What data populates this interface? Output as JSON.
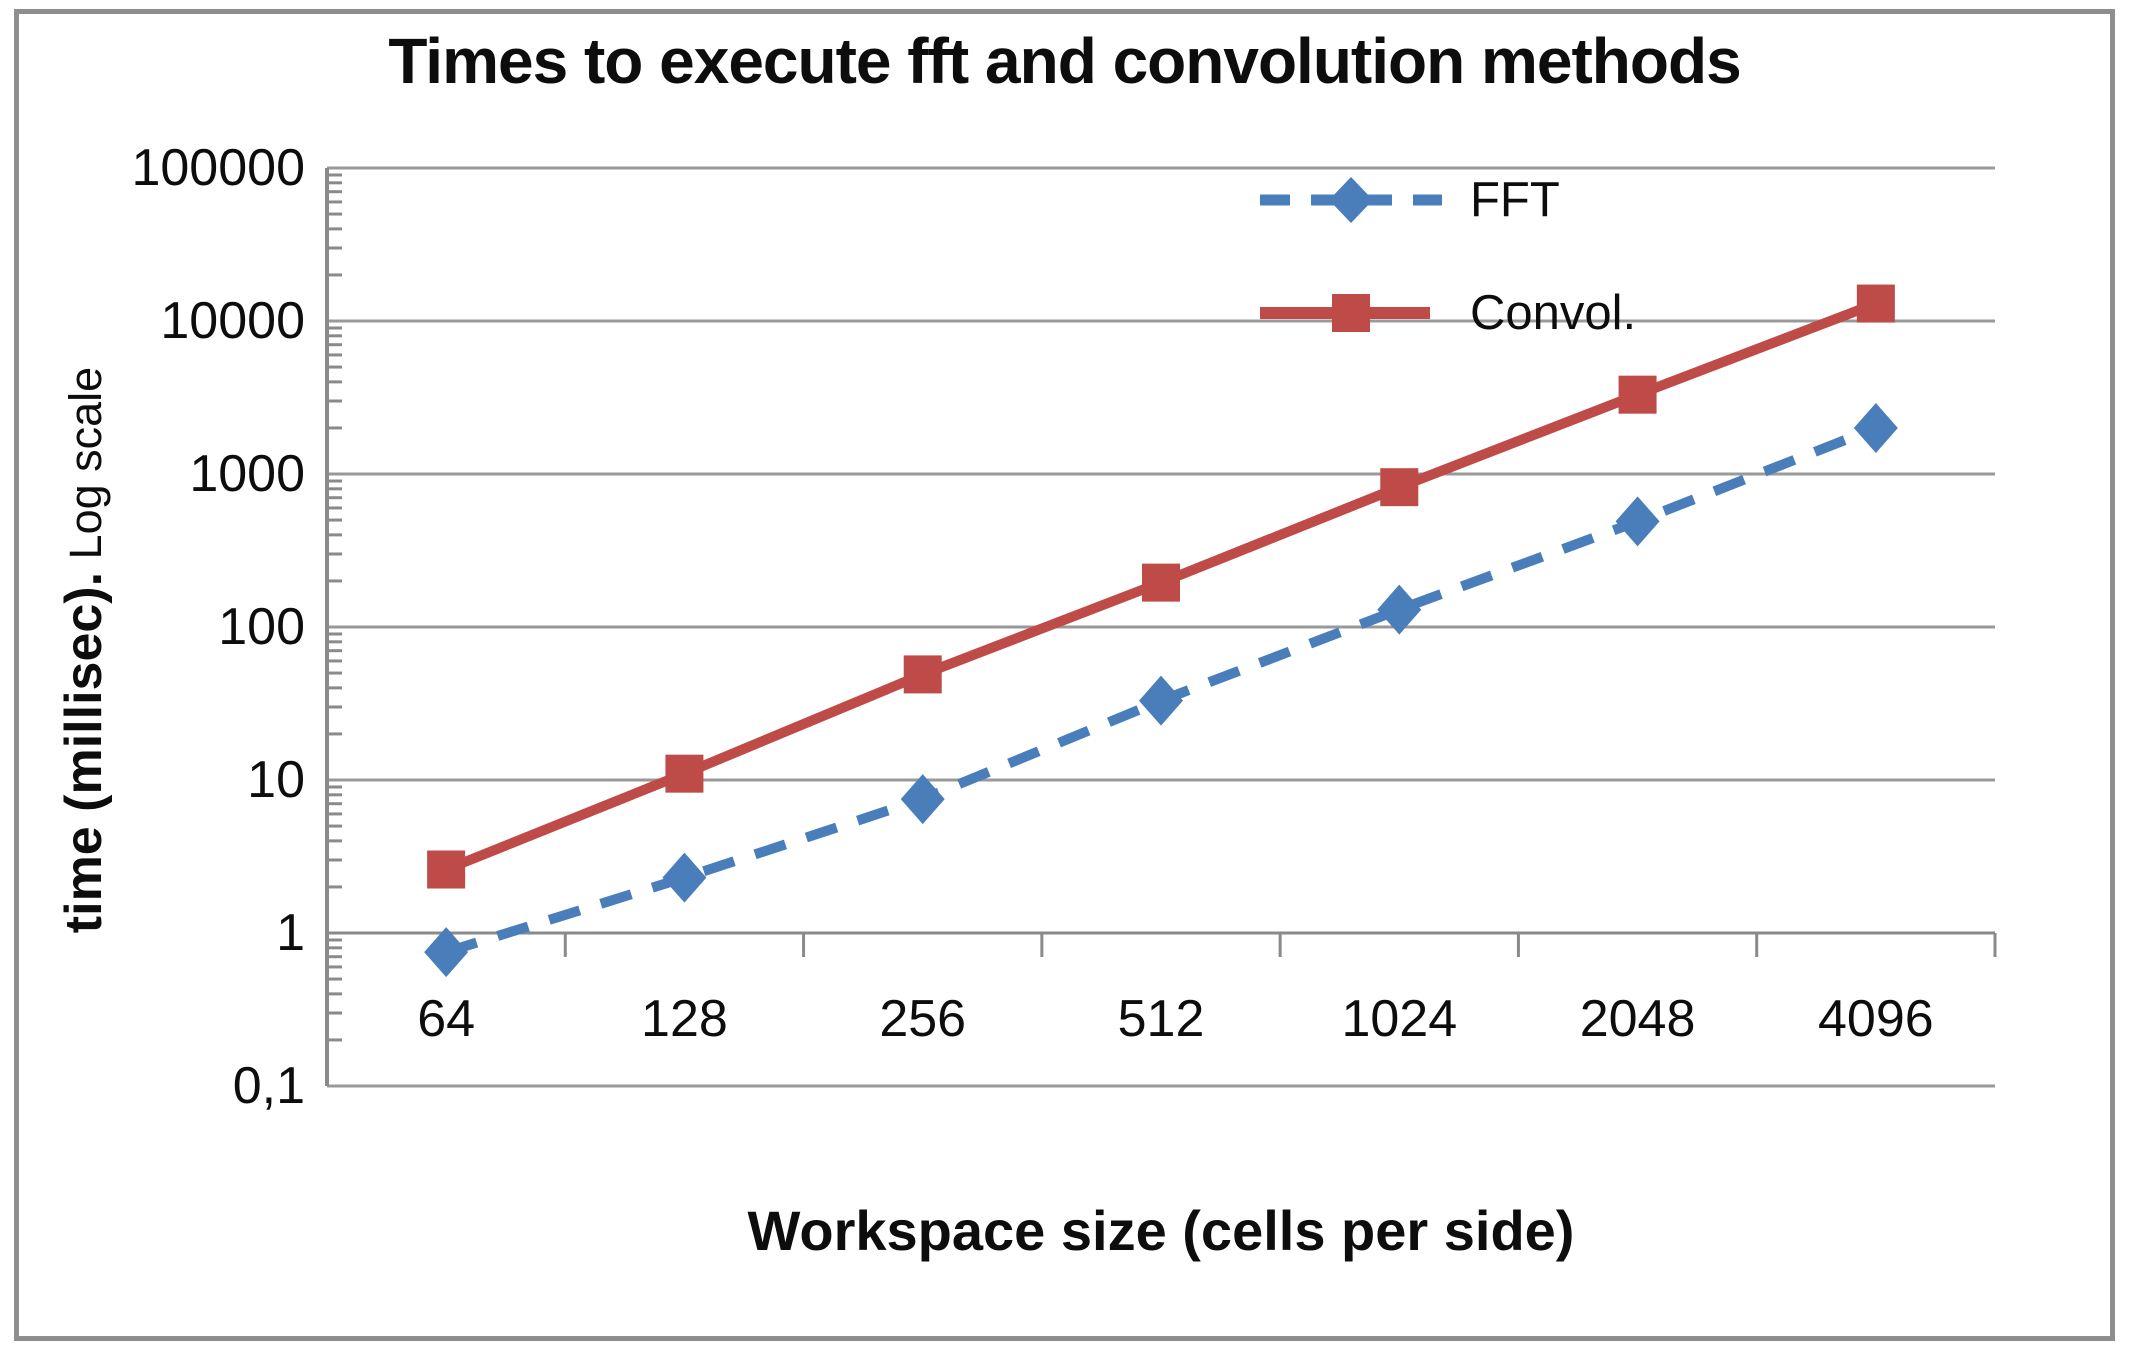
{
  "title": "Times to execute fft and convolution methods",
  "y_axis": {
    "title_bold": "time (millisec).",
    "title_regular": " Log scale",
    "tick_labels": [
      "100000",
      "10000",
      "1000",
      "100",
      "10",
      "1",
      "0,1"
    ]
  },
  "x_axis": {
    "title": "Workspace size (cells per side)",
    "tick_labels": [
      "64",
      "128",
      "256",
      "512",
      "1024",
      "2048",
      "4096"
    ]
  },
  "legend": [
    {
      "label": "FFT",
      "color": "#4A7EBB",
      "marker": "diamond",
      "line": "dashed"
    },
    {
      "label": "Convol.",
      "color": "#BE4B48",
      "marker": "square",
      "line": "solid"
    }
  ],
  "colors": {
    "fft": "#4A7EBB",
    "convol": "#BE4B48",
    "gridline": "#999999",
    "axis": "#8a8a8a",
    "text": "#0d0d0d",
    "frame_border": "#8e8e8e"
  },
  "chart_data": {
    "type": "line",
    "title": "Times to execute fft and convolution methods",
    "x": [
      64,
      128,
      256,
      512,
      1024,
      2048,
      4096
    ],
    "series": [
      {
        "name": "FFT",
        "values": [
          0.75,
          2.3,
          7.5,
          33,
          130,
          490,
          2000
        ],
        "color": "#4A7EBB",
        "marker": "diamond",
        "dashed": true
      },
      {
        "name": "Convol.",
        "values": [
          2.6,
          11,
          49,
          195,
          820,
          3300,
          13000
        ],
        "color": "#BE4B48",
        "marker": "square",
        "dashed": false
      }
    ],
    "xlabel": "Workspace size (cells per side)",
    "ylabel": "time (millisec). Log scale",
    "yscale": "log",
    "ylim": [
      0.1,
      100000
    ],
    "y_ticks": [
      100000,
      10000,
      1000,
      100,
      10,
      1,
      0.1
    ],
    "grid": "horizontal",
    "legend_position": "top-right",
    "x_axis_cross": 1
  }
}
